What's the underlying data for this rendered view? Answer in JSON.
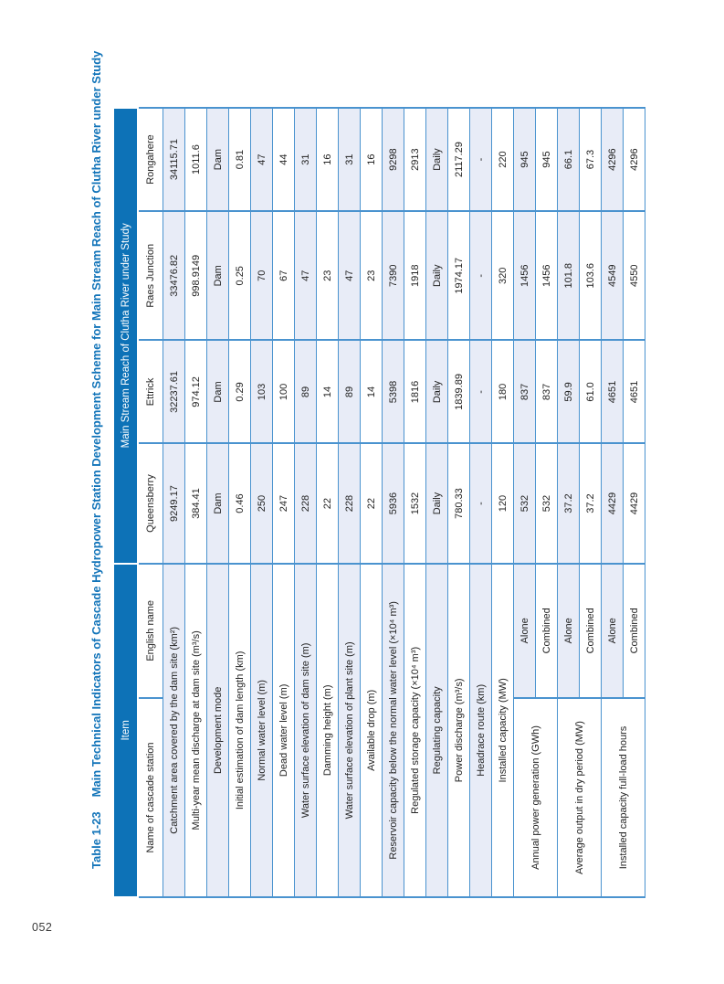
{
  "page": {
    "number": "052"
  },
  "table": {
    "title_label": "Table 1-23",
    "title_text": "Main Technical Indicators of Cascade Hydropower Station Development Scheme for Main Stream Reach of Clutha River under Study",
    "header": {
      "item": "Item",
      "group": "Main Stream Reach of Clutha River under Study",
      "name_label": "Name of cascade station",
      "english_label": "English name",
      "stations": [
        "Queensberry",
        "Ettrick",
        "Raes Junction",
        "Rongahere"
      ]
    },
    "rows": [
      {
        "label": "Catchment area covered by the dam site (km²)",
        "values": [
          "9249.17",
          "32237.61",
          "33476.82",
          "34115.71"
        ],
        "shaded": true
      },
      {
        "label": "Multi-year mean discharge at dam site (m³/s)",
        "values": [
          "384.41",
          "974.12",
          "998.9149",
          "1011.6"
        ],
        "shaded": false
      },
      {
        "label": "Development mode",
        "values": [
          "Dam",
          "Dam",
          "Dam",
          "Dam"
        ],
        "shaded": true
      },
      {
        "label": "Initial estimation of dam length (km)",
        "values": [
          "0.46",
          "0.29",
          "0.25",
          "0.81"
        ],
        "shaded": false
      },
      {
        "label": "Normal water level (m)",
        "values": [
          "250",
          "103",
          "70",
          "47"
        ],
        "shaded": true
      },
      {
        "label": "Dead water level (m)",
        "values": [
          "247",
          "100",
          "67",
          "44"
        ],
        "shaded": false
      },
      {
        "label": "Water surface elevation of dam site (m)",
        "values": [
          "228",
          "89",
          "47",
          "31"
        ],
        "shaded": true
      },
      {
        "label": "Damming height (m)",
        "values": [
          "22",
          "14",
          "23",
          "16"
        ],
        "shaded": false
      },
      {
        "label": "Water surface elevation of plant site (m)",
        "values": [
          "228",
          "89",
          "47",
          "31"
        ],
        "shaded": true
      },
      {
        "label": "Available drop (m)",
        "values": [
          "22",
          "14",
          "23",
          "16"
        ],
        "shaded": false
      },
      {
        "label": "Reservoir capacity below the normal water level (×10⁴ m³)",
        "values": [
          "5936",
          "5398",
          "7390",
          "9298"
        ],
        "shaded": true
      },
      {
        "label": "Regulated storage capacity (×10⁴ m³)",
        "values": [
          "1532",
          "1816",
          "1918",
          "2913"
        ],
        "shaded": false
      },
      {
        "label": "Regulating capacity",
        "values": [
          "Daily",
          "Daily",
          "Daily",
          "Daily"
        ],
        "shaded": true
      },
      {
        "label": "Power discharge (m³/s)",
        "values": [
          "780.33",
          "1839.89",
          "1974.17",
          "2117.29"
        ],
        "shaded": false
      },
      {
        "label": "Headrace route (km)",
        "values": [
          "-",
          "-",
          "-",
          "-"
        ],
        "shaded": true
      },
      {
        "label": "Installed capacity (MW)",
        "values": [
          "120",
          "180",
          "320",
          "220"
        ],
        "shaded": false
      }
    ],
    "groups": [
      {
        "label": "Annual power generation (GWh)",
        "subs": [
          {
            "label": "Alone",
            "values": [
              "532",
              "837",
              "1456",
              "945"
            ],
            "shaded": true
          },
          {
            "label": "Combined",
            "values": [
              "532",
              "837",
              "1456",
              "945"
            ],
            "shaded": false
          }
        ]
      },
      {
        "label": "Average output in dry period (MW)",
        "subs": [
          {
            "label": "Alone",
            "values": [
              "37.2",
              "59.9",
              "101.8",
              "66.1"
            ],
            "shaded": true
          },
          {
            "label": "Combined",
            "values": [
              "37.2",
              "61.0",
              "103.6",
              "67.3"
            ],
            "shaded": false
          }
        ]
      },
      {
        "label": "Installed capacity full-load hours",
        "subs": [
          {
            "label": "Alone",
            "values": [
              "4429",
              "4651",
              "4549",
              "4296"
            ],
            "shaded": true
          },
          {
            "label": "Combined",
            "values": [
              "4429",
              "4651",
              "4550",
              "4296"
            ],
            "shaded": false
          }
        ]
      }
    ]
  },
  "colors": {
    "header_blue": "#0d72b7",
    "title_blue": "#1274b9",
    "cell_border_blue": "#4a93cf",
    "shaded_row": "#e8ecf7",
    "text": "#232323"
  }
}
